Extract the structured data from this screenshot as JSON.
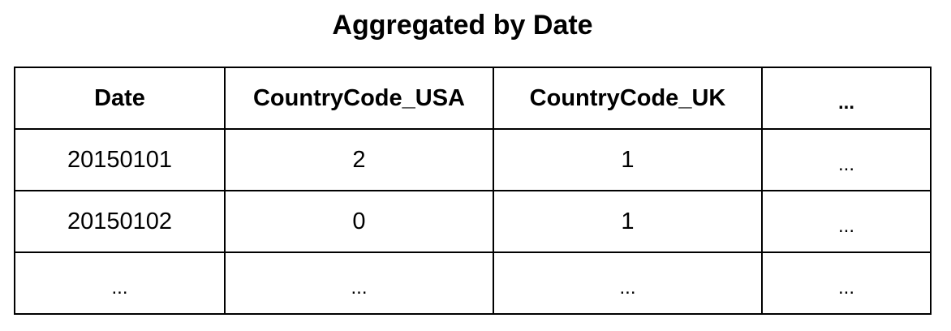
{
  "title": "Aggregated by Date",
  "table": {
    "headers": [
      "Date",
      "CountryCode_USA",
      "CountryCode_UK",
      "..."
    ],
    "rows": [
      [
        "20150101",
        "2",
        "1",
        "..."
      ],
      [
        "20150102",
        "0",
        "1",
        "..."
      ],
      [
        "...",
        "...",
        "...",
        "..."
      ]
    ]
  }
}
